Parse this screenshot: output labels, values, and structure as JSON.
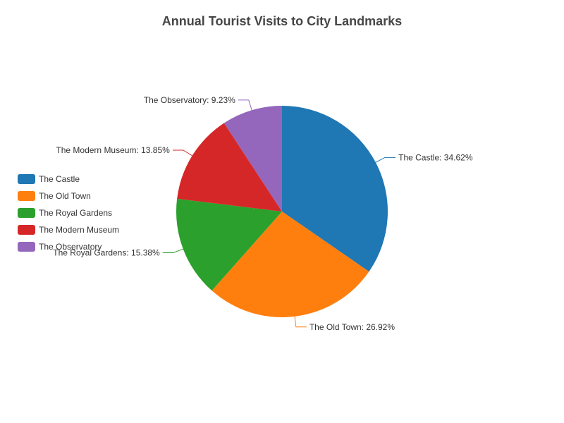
{
  "chart_data": {
    "type": "pie",
    "title": "Annual Tourist Visits to City Landmarks",
    "categories": [
      "The Castle",
      "The Old Town",
      "The Royal Gardens",
      "The Modern Museum",
      "The Observatory"
    ],
    "values": [
      34.62,
      26.92,
      15.38,
      13.85,
      9.23
    ],
    "labels": [
      "The Castle: 34.62%",
      "The Old Town: 26.92%",
      "The Royal Gardens: 15.38%",
      "The Modern Museum: 13.85%",
      "The Observatory: 9.23%"
    ],
    "colors": [
      "#1f77b4",
      "#ff7f0e",
      "#2ca02c",
      "#d62728",
      "#9467bd"
    ],
    "legend_position": "left"
  }
}
